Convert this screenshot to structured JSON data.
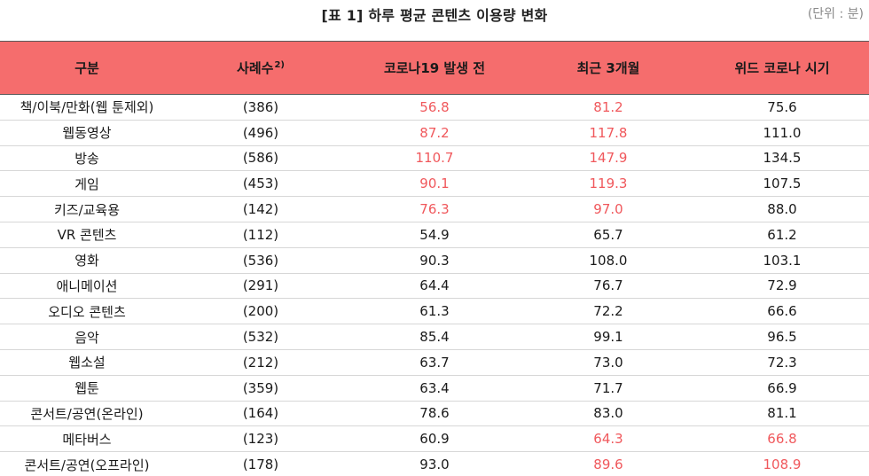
{
  "title": "[표 1] 하루 평균 콘텐츠 이용량 변화",
  "unit": "(단위 : 분)",
  "colors": {
    "header_bg": "#f56d6d",
    "highlight": "#f0585c",
    "text": "#1a1a1a"
  },
  "headers": {
    "category": "구분",
    "cases": "사례수",
    "cases_note": "2)",
    "before": "코로나19 발생 전",
    "recent": "최근 3개월",
    "with": "위드 코로나 시기"
  },
  "rows": [
    {
      "name": "책/이북/만화(웹 툰제외)",
      "n": "(386)",
      "before": "56.8",
      "recent": "81.2",
      "with": "75.6",
      "hl": [
        true,
        true,
        false
      ]
    },
    {
      "name": "웹동영상",
      "n": "(496)",
      "before": "87.2",
      "recent": "117.8",
      "with": "111.0",
      "hl": [
        true,
        true,
        false
      ]
    },
    {
      "name": "방송",
      "n": "(586)",
      "before": "110.7",
      "recent": "147.9",
      "with": "134.5",
      "hl": [
        true,
        true,
        false
      ]
    },
    {
      "name": "게임",
      "n": "(453)",
      "before": "90.1",
      "recent": "119.3",
      "with": "107.5",
      "hl": [
        true,
        true,
        false
      ]
    },
    {
      "name": "키즈/교육용",
      "n": "(142)",
      "before": "76.3",
      "recent": "97.0",
      "with": "88.0",
      "hl": [
        true,
        true,
        false
      ]
    },
    {
      "name": "VR 콘텐츠",
      "n": "(112)",
      "before": "54.9",
      "recent": "65.7",
      "with": "61.2",
      "hl": [
        false,
        false,
        false
      ]
    },
    {
      "name": "영화",
      "n": "(536)",
      "before": "90.3",
      "recent": "108.0",
      "with": "103.1",
      "hl": [
        false,
        false,
        false
      ]
    },
    {
      "name": "애니메이션",
      "n": "(291)",
      "before": "64.4",
      "recent": "76.7",
      "with": "72.9",
      "hl": [
        false,
        false,
        false
      ]
    },
    {
      "name": "오디오 콘텐츠",
      "n": "(200)",
      "before": "61.3",
      "recent": "72.2",
      "with": "66.6",
      "hl": [
        false,
        false,
        false
      ]
    },
    {
      "name": "음악",
      "n": "(532)",
      "before": "85.4",
      "recent": "99.1",
      "with": "96.5",
      "hl": [
        false,
        false,
        false
      ]
    },
    {
      "name": "웹소설",
      "n": "(212)",
      "before": "63.7",
      "recent": "73.0",
      "with": "72.3",
      "hl": [
        false,
        false,
        false
      ]
    },
    {
      "name": "웹툰",
      "n": "(359)",
      "before": "63.4",
      "recent": "71.7",
      "with": "66.9",
      "hl": [
        false,
        false,
        false
      ]
    },
    {
      "name": "콘서트/공연(온라인)",
      "n": "(164)",
      "before": "78.6",
      "recent": "83.0",
      "with": "81.1",
      "hl": [
        false,
        false,
        false
      ]
    },
    {
      "name": "메타버스",
      "n": "(123)",
      "before": "60.9",
      "recent": "64.3",
      "with": "66.8",
      "hl": [
        false,
        true,
        true
      ]
    },
    {
      "name": "콘서트/공연(오프라인)",
      "n": "(178)",
      "before": "93.0",
      "recent": "89.6",
      "with": "108.9",
      "hl": [
        false,
        true,
        true
      ]
    }
  ]
}
